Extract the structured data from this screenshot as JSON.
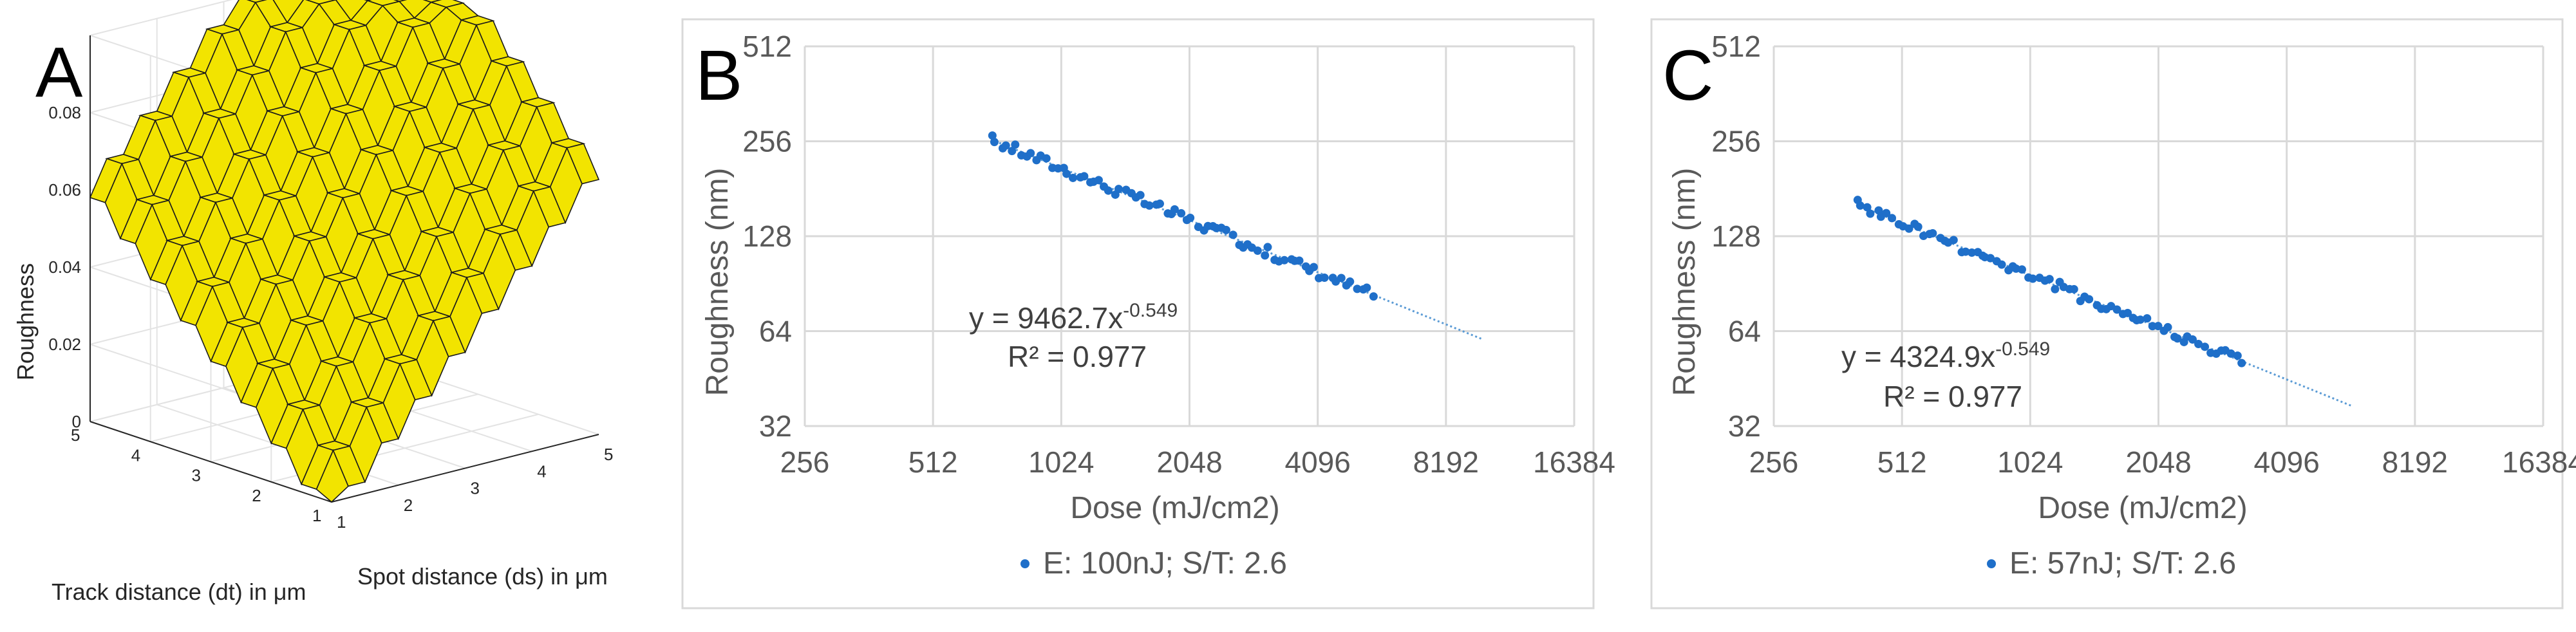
{
  "chart_data": [
    {
      "panel": "A",
      "type": "surface3d",
      "zlabel": "Roughness",
      "xlabel": "Spot distance (ds) in μm",
      "ylabel": "Track distance (dt) in μm",
      "z_ticks": [
        "0",
        "0.02",
        "0.04",
        "0.06",
        "0.08"
      ],
      "x_ticks": [
        "1",
        "2",
        "3",
        "4",
        "5"
      ],
      "y_ticks": [
        "1",
        "2",
        "3",
        "4",
        "5"
      ],
      "ds_values": [
        1,
        1.25,
        1.5,
        1.75,
        2,
        2.25,
        2.5,
        2.75,
        3,
        3.25,
        3.5,
        3.75,
        4,
        4.25,
        4.5,
        4.75,
        5
      ],
      "dt_values": [
        1,
        1.25,
        1.5,
        1.75,
        2,
        2.25,
        2.5,
        2.75,
        3,
        3.25,
        3.5,
        3.75,
        4,
        4.25,
        4.5,
        4.75,
        5
      ],
      "zlim": [
        0,
        0.1
      ],
      "surface_color": "#f2e400",
      "min_color": "#5b3fc4"
    },
    {
      "panel": "B",
      "type": "scatter",
      "xscale": "log2",
      "yscale": "log2",
      "xlabel": "Dose (mJ/cm2)",
      "ylabel": "Roughness (nm)",
      "xlim": [
        256,
        16384
      ],
      "ylim": [
        32,
        512
      ],
      "x_ticks": [
        "256",
        "512",
        "1024",
        "2048",
        "4096",
        "8192",
        "16384"
      ],
      "y_ticks": [
        "32",
        "64",
        "128",
        "256",
        "512"
      ],
      "series": [
        {
          "name": "E: 100nJ; S/T: 2.6",
          "color": "#1f6fc9"
        }
      ],
      "fit": {
        "a": 9462.7,
        "b": -0.549,
        "x_range": [
          700,
          10000
        ]
      },
      "equation_prefix": "y = 9462.7x",
      "equation_exp": "-0.549",
      "r2": "R² = 0.977",
      "x_range": [
        700,
        5500
      ],
      "n_points": 75
    },
    {
      "panel": "C",
      "type": "scatter",
      "xscale": "log2",
      "yscale": "log2",
      "xlabel": "Dose (mJ/cm2)",
      "ylabel": "Roughness (nm)",
      "xlim": [
        256,
        16384
      ],
      "ylim": [
        32,
        512
      ],
      "x_ticks": [
        "256",
        "512",
        "1024",
        "2048",
        "4096",
        "8192",
        "16384"
      ],
      "y_ticks": [
        "32",
        "64",
        "128",
        "256",
        "512"
      ],
      "series": [
        {
          "name": "E: 57nJ; S/T: 2.6",
          "color": "#1f6fc9"
        }
      ],
      "fit": {
        "a": 4324.9,
        "b": -0.549,
        "x_range": [
          400,
          5800
        ]
      },
      "equation_prefix": "y = 4324.9x",
      "equation_exp": "-0.549",
      "r2": "R² = 0.977",
      "x_range": [
        400,
        3200
      ],
      "n_points": 75
    }
  ]
}
